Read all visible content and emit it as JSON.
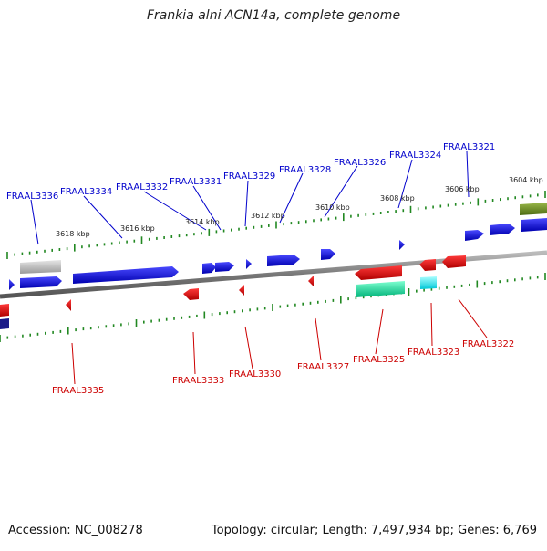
{
  "title": "Frankia alni ACN14a, complete genome",
  "footer": {
    "accession": "Accession: NC_008278",
    "summary": "Topology: circular; Length: 7,497,934 bp; Genes: 6,769"
  },
  "colors": {
    "forward_gene": "#0000ee",
    "reverse_gene": "#ee0000",
    "forward_label": "#0000cc",
    "reverse_label": "#cc0000",
    "rna_gene": "#00dd99",
    "trna_gene": "#00eeee",
    "other_gene": "#aaaaaa",
    "olive_feature": "#6b8e23",
    "backbone": "#888888",
    "tick": "#228822"
  },
  "scale_labels": [
    "3618 kbp",
    "3616 kbp",
    "3614 kbp",
    "3612 kbp",
    "3610 kbp",
    "3608 kbp",
    "3606 kbp",
    "3604 kbp"
  ],
  "forward_labels": [
    "FRAAL3336",
    "FRAAL3334",
    "FRAAL3332",
    "FRAAL3331",
    "FRAAL3329",
    "FRAAL3328",
    "FRAAL3326",
    "FRAAL3324",
    "FRAAL3321"
  ],
  "reverse_labels": [
    "FRAAL3335",
    "FRAAL3333",
    "FRAAL3330",
    "FRAAL3327",
    "FRAAL3325",
    "FRAAL3323",
    "FRAAL3322"
  ]
}
